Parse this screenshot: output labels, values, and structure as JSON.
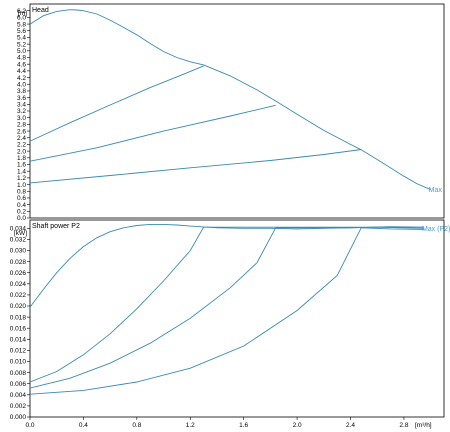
{
  "style": {
    "curve_color": "#3a8ab4",
    "label_color": "#4fa0cc",
    "frame_color": "#000000"
  },
  "chart_data": [
    {
      "type": "line",
      "title": "Head",
      "yunit": "[m]",
      "ylim": [
        0,
        6.4
      ],
      "yticks": [
        "0.0",
        "0.2",
        "0.4",
        "0.6",
        "0.8",
        "1.0",
        "1.2",
        "1.4",
        "1.6",
        "1.8",
        "2.0",
        "2.2",
        "2.4",
        "2.6",
        "2.8",
        "3.0",
        "3.2",
        "3.4",
        "3.6",
        "3.8",
        "4.0",
        "4.2",
        "4.4",
        "4.6",
        "4.8",
        "5.0",
        "5.2",
        "5.4",
        "5.6",
        "5.8",
        "6.0",
        "6.2"
      ],
      "xlim": [
        0,
        3.1
      ],
      "grid": false,
      "series": [
        {
          "name": "Max",
          "x": [
            0,
            0.1,
            0.2,
            0.3,
            0.35,
            0.4,
            0.5,
            0.6,
            0.7,
            0.8,
            0.9,
            1.0,
            1.1,
            1.2,
            1.3,
            1.5,
            1.7,
            1.84,
            2.0,
            2.2,
            2.4,
            2.48,
            2.6,
            2.8,
            2.9,
            3.0
          ],
          "y": [
            5.8,
            6.05,
            6.18,
            6.23,
            6.22,
            6.2,
            6.1,
            5.92,
            5.7,
            5.48,
            5.22,
            4.98,
            4.8,
            4.67,
            4.58,
            4.25,
            3.83,
            3.5,
            3.1,
            2.62,
            2.2,
            2.04,
            1.75,
            1.25,
            1.02,
            0.85
          ]
        },
        {
          "x": [
            0,
            0.3,
            0.6,
            0.9,
            1.15,
            1.3
          ],
          "y": [
            2.3,
            2.85,
            3.38,
            3.9,
            4.3,
            4.55
          ]
        },
        {
          "x": [
            0,
            0.5,
            1.0,
            1.5,
            1.84
          ],
          "y": [
            1.7,
            2.1,
            2.6,
            3.05,
            3.37
          ]
        },
        {
          "x": [
            0,
            0.6,
            1.2,
            1.8,
            2.2,
            2.48
          ],
          "y": [
            1.05,
            1.27,
            1.5,
            1.72,
            1.9,
            2.05
          ]
        }
      ]
    },
    {
      "type": "line",
      "title": "Shaft power P2",
      "yunit": "[kW]",
      "ylim": [
        0,
        0.0355
      ],
      "yticks": [
        "0.000",
        "0.002",
        "0.004",
        "0.006",
        "0.008",
        "0.010",
        "0.012",
        "0.014",
        "0.016",
        "0.018",
        "0.020",
        "0.022",
        "0.024",
        "0.026",
        "0.028",
        "0.030",
        "0.032",
        "0.034"
      ],
      "xlim": [
        0,
        3.1
      ],
      "xticks": [
        "0.0",
        "0.4",
        "0.8",
        "1.2",
        "1.6",
        "2.0",
        "2.4",
        "2.8"
      ],
      "xunit": "[m³/h]",
      "grid": false,
      "series": [
        {
          "name": "Max (P2)",
          "x": [
            0,
            0.1,
            0.2,
            0.3,
            0.4,
            0.5,
            0.6,
            0.7,
            0.8,
            0.9,
            1.0,
            1.1,
            1.2,
            1.4,
            1.6,
            1.8,
            2.0,
            2.2,
            2.4,
            2.6,
            2.8,
            2.95
          ],
          "y": [
            0.0198,
            0.023,
            0.026,
            0.0286,
            0.0307,
            0.0323,
            0.0334,
            0.0341,
            0.0345,
            0.0347,
            0.0347,
            0.0346,
            0.0344,
            0.0341,
            0.034,
            0.034,
            0.0339,
            0.034,
            0.0341,
            0.0342,
            0.0341,
            0.034
          ]
        },
        {
          "x": [
            0,
            0.2,
            0.4,
            0.6,
            0.8,
            1.0,
            1.2,
            1.3,
            1.6,
            2.0,
            2.4,
            2.8,
            2.95
          ],
          "y": [
            0.0063,
            0.0082,
            0.0112,
            0.015,
            0.0195,
            0.0245,
            0.03,
            0.0342,
            0.0342,
            0.0342,
            0.0342,
            0.0342,
            0.0342
          ]
        },
        {
          "x": [
            0,
            0.3,
            0.6,
            0.9,
            1.2,
            1.5,
            1.7,
            1.84,
            2.1,
            2.4,
            2.7,
            2.95
          ],
          "y": [
            0.0052,
            0.007,
            0.0097,
            0.0133,
            0.0178,
            0.0233,
            0.0278,
            0.0341,
            0.0341,
            0.0341,
            0.0343,
            0.0342
          ]
        },
        {
          "x": [
            0,
            0.4,
            0.8,
            1.2,
            1.6,
            2.0,
            2.3,
            2.48,
            2.7,
            2.95
          ],
          "y": [
            0.0041,
            0.0048,
            0.0063,
            0.0088,
            0.0128,
            0.0192,
            0.0255,
            0.0341,
            0.0339,
            0.0338
          ]
        }
      ]
    }
  ]
}
